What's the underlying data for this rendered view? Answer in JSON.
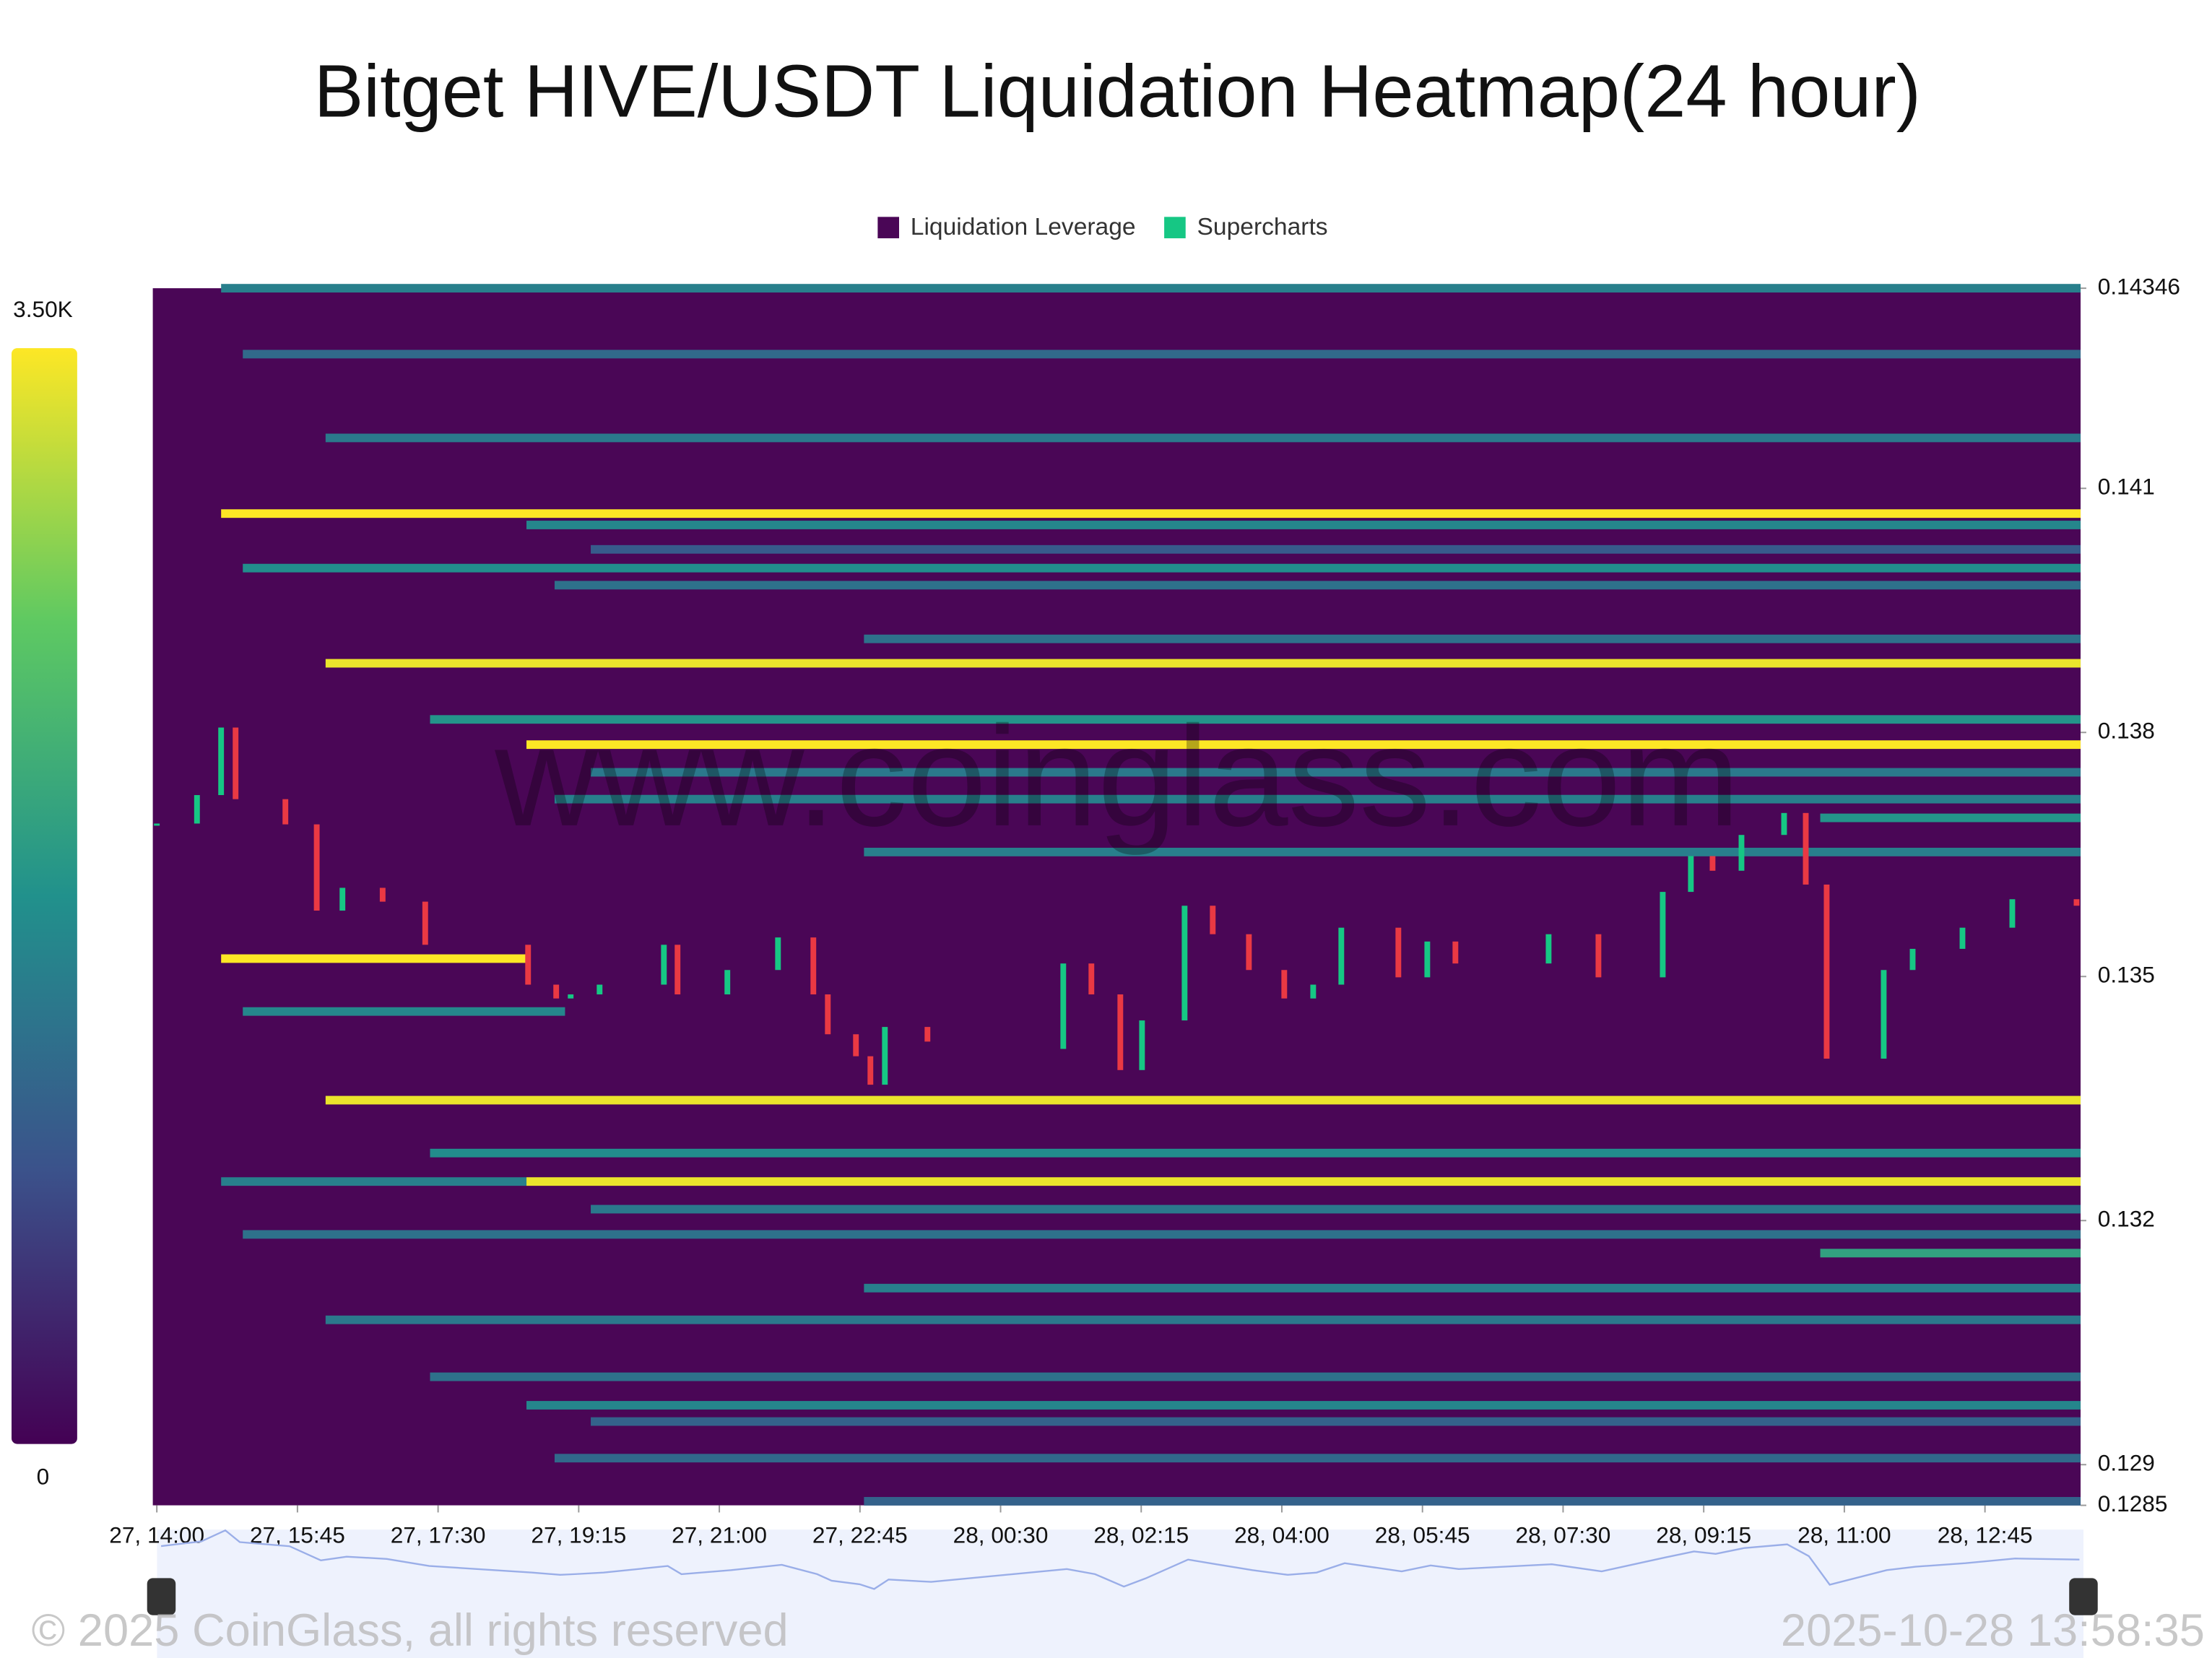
{
  "chart_data": {
    "type": "heatmap",
    "title": "Bitget HIVE/USDT Liquidation Heatmap(24 hour)",
    "legend": [
      {
        "name": "Liquidation Leverage",
        "color": "#4a0656"
      },
      {
        "name": "Supercharts",
        "color": "#16c784"
      }
    ],
    "watermark": "www.coinglass.com",
    "copyright": "© 2025 CoinGlass, all rights reserved",
    "timestamp": "2025-10-28 13:58:35",
    "xlim": [
      -0.05,
      23.94
    ],
    "xticks": [
      {
        "value": 0,
        "label": "27, 14:00"
      },
      {
        "value": 1.75,
        "label": "27, 15:45"
      },
      {
        "value": 3.5,
        "label": "27, 17:30"
      },
      {
        "value": 5.25,
        "label": "27, 19:15"
      },
      {
        "value": 7,
        "label": "27, 21:00"
      },
      {
        "value": 8.75,
        "label": "27, 22:45"
      },
      {
        "value": 10.5,
        "label": "28, 00:30"
      },
      {
        "value": 12.25,
        "label": "28, 02:15"
      },
      {
        "value": 14,
        "label": "28, 04:00"
      },
      {
        "value": 15.75,
        "label": "28, 05:45"
      },
      {
        "value": 17.5,
        "label": "28, 07:30"
      },
      {
        "value": 19.25,
        "label": "28, 09:15"
      },
      {
        "value": 21,
        "label": "28, 11:00"
      },
      {
        "value": 22.75,
        "label": "28, 12:45"
      }
    ],
    "ylim": [
      0.1285,
      0.14346
    ],
    "yticks": [
      0.14346,
      0.141,
      0.138,
      0.135,
      0.132,
      0.129,
      0.1285
    ],
    "colorbar": {
      "lim": [
        0,
        3500
      ],
      "ticks": [
        0,
        {
          "value": 3500,
          "label": "3.50K"
        }
      ]
    },
    "bands": {
      "price": [
        0.14346,
        0.14265,
        0.14162,
        0.14069,
        0.14055,
        0.14025,
        0.14002,
        0.13981,
        0.13915,
        0.13885,
        0.13816,
        0.13785,
        0.13751,
        0.13718,
        0.13695,
        0.13653,
        0.13522,
        0.13457,
        0.13348,
        0.13283,
        0.13248,
        0.13248,
        0.13214,
        0.13183,
        0.1316,
        0.13117,
        0.13078,
        0.13008,
        0.12973,
        0.12953,
        0.12908,
        0.12855
      ],
      "start": [
        0.8,
        1.07,
        2.1,
        0.8,
        4.6,
        5.4,
        1.07,
        4.95,
        8.8,
        2.1,
        3.4,
        4.6,
        5.4,
        4.95,
        20.7,
        8.8,
        0.8,
        1.07,
        2.1,
        3.4,
        0.8,
        4.6,
        5.4,
        1.07,
        20.7,
        8.8,
        2.1,
        3.4,
        4.6,
        5.4,
        4.95,
        8.8
      ],
      "end": [
        null,
        null,
        null,
        null,
        null,
        null,
        null,
        null,
        null,
        null,
        null,
        null,
        null,
        null,
        null,
        null,
        4.6,
        5.08,
        null,
        null,
        4.6,
        null,
        null,
        null,
        null,
        null,
        null,
        null,
        null,
        null,
        null,
        null
      ],
      "values": [
        1500,
        1200,
        1400,
        3500,
        1600,
        1000,
        1700,
        1300,
        1300,
        3400,
        1800,
        3500,
        1400,
        1500,
        1800,
        1500,
        3500,
        1600,
        3400,
        1700,
        1500,
        3400,
        1400,
        1300,
        2000,
        1500,
        1400,
        1300,
        1600,
        1100,
        1200,
        1100
      ]
    },
    "candles": {
      "x": [
        0,
        0.5,
        0.8,
        0.98,
        1.6,
        1.99,
        2.31,
        2.81,
        3.34,
        4.62,
        4.97,
        5.15,
        5.51,
        6.31,
        6.48,
        7.1,
        7.73,
        8.17,
        8.35,
        8.7,
        8.88,
        9.06,
        9.59,
        11.28,
        11.63,
        11.99,
        12.26,
        12.79,
        13.14,
        13.59,
        14.03,
        14.39,
        14.74,
        15.45,
        15.81,
        16.16,
        17.32,
        17.94,
        18.74,
        19.09,
        19.36,
        19.72,
        20.25,
        20.52,
        20.78,
        21.49,
        21.85,
        22.47,
        23.09,
        23.89
      ],
      "open": [
        0.13688,
        0.13688,
        0.13723,
        0.13806,
        0.13718,
        0.13687,
        0.13581,
        0.13609,
        0.13592,
        0.13539,
        0.1349,
        0.13473,
        0.13478,
        0.1349,
        0.13539,
        0.13478,
        0.13508,
        0.13548,
        0.13478,
        0.13429,
        0.13402,
        0.13367,
        0.13438,
        0.13411,
        0.13516,
        0.13478,
        0.13385,
        0.13446,
        0.13587,
        0.13552,
        0.13508,
        0.13473,
        0.1349,
        0.1356,
        0.13499,
        0.13543,
        0.13516,
        0.13552,
        0.13499,
        0.13604,
        0.13648,
        0.1363,
        0.13674,
        0.13701,
        0.13613,
        0.13399,
        0.13508,
        0.13534,
        0.1356,
        0.13595
      ],
      "close": [
        0.13688,
        0.13723,
        0.13806,
        0.13718,
        0.13687,
        0.13581,
        0.13609,
        0.13592,
        0.13539,
        0.1349,
        0.13473,
        0.13478,
        0.1349,
        0.13539,
        0.13478,
        0.13508,
        0.13548,
        0.13478,
        0.13429,
        0.13402,
        0.13367,
        0.13438,
        0.1342,
        0.13516,
        0.13478,
        0.13385,
        0.13446,
        0.13587,
        0.13552,
        0.13508,
        0.13473,
        0.1349,
        0.1356,
        0.13499,
        0.13543,
        0.13516,
        0.13552,
        0.13499,
        0.13604,
        0.13648,
        0.1363,
        0.13674,
        0.13701,
        0.13613,
        0.13399,
        0.13508,
        0.13534,
        0.1356,
        0.13595,
        0.13587
      ],
      "up_color": "#16c784",
      "down_color": "#ea3943"
    }
  }
}
